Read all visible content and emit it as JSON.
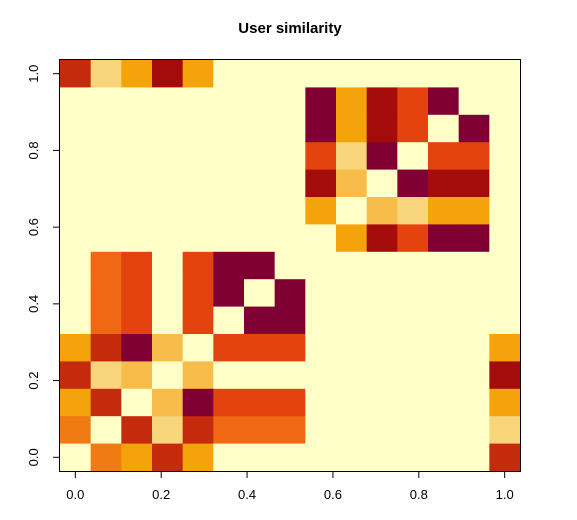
{
  "chart_data": {
    "type": "heatmap",
    "title": "User similarity",
    "xlabel": "",
    "ylabel": "",
    "xlim": [
      -0.0357,
      1.0357
    ],
    "ylim": [
      -0.0357,
      1.0357
    ],
    "x_ticks": [
      0.0,
      0.2,
      0.4,
      0.6,
      0.8,
      1.0
    ],
    "y_ticks": [
      0.0,
      0.2,
      0.4,
      0.6,
      0.8,
      1.0
    ],
    "x_tick_labels": [
      "0.0",
      "0.2",
      "0.4",
      "0.6",
      "0.8",
      "1.0"
    ],
    "y_tick_labels": [
      "0.0",
      "0.2",
      "0.4",
      "0.6",
      "0.8",
      "1.0"
    ],
    "grid": false,
    "n_rows": 15,
    "n_cols": 15,
    "cell_centers": [
      0.0,
      0.0714,
      0.1429,
      0.2143,
      0.2857,
      0.3571,
      0.4286,
      0.5,
      0.5714,
      0.6429,
      0.7143,
      0.7857,
      0.8571,
      0.9286,
      1.0
    ],
    "palette": {
      "0": "#FFFFC8",
      "1": "#F8D47A",
      "2": "#F5A30A",
      "3": "#F07B12",
      "4": "#E4420E",
      "5": "#C42A0C",
      "6": "#A40B0B",
      "7": "#800033",
      "8": "#F8BC4A",
      "9": "#F06714"
    },
    "row_order": "top-to-bottom (first row at y=1.0)",
    "levels": [
      [
        5,
        1,
        2,
        6,
        2,
        0,
        0,
        0,
        0,
        0,
        0,
        0,
        0,
        0,
        0
      ],
      [
        0,
        0,
        0,
        0,
        0,
        0,
        0,
        0,
        7,
        2,
        6,
        4,
        7,
        0,
        0
      ],
      [
        0,
        0,
        0,
        0,
        0,
        0,
        0,
        0,
        7,
        2,
        6,
        4,
        0,
        7,
        0
      ],
      [
        0,
        0,
        0,
        0,
        0,
        0,
        0,
        0,
        4,
        1,
        7,
        0,
        4,
        4,
        0
      ],
      [
        0,
        0,
        0,
        0,
        0,
        0,
        0,
        0,
        6,
        8,
        0,
        7,
        6,
        6,
        0
      ],
      [
        0,
        0,
        0,
        0,
        0,
        0,
        0,
        0,
        2,
        0,
        8,
        1,
        2,
        2,
        0
      ],
      [
        0,
        0,
        0,
        0,
        0,
        0,
        0,
        0,
        0,
        2,
        6,
        4,
        7,
        7,
        0
      ],
      [
        0,
        9,
        4,
        0,
        4,
        7,
        7,
        0,
        0,
        0,
        0,
        0,
        0,
        0,
        0
      ],
      [
        0,
        9,
        4,
        0,
        4,
        7,
        0,
        7,
        0,
        0,
        0,
        0,
        0,
        0,
        0
      ],
      [
        0,
        9,
        4,
        0,
        4,
        0,
        7,
        7,
        0,
        0,
        0,
        0,
        0,
        0,
        0
      ],
      [
        2,
        5,
        7,
        8,
        0,
        4,
        4,
        4,
        0,
        0,
        0,
        0,
        0,
        0,
        2
      ],
      [
        5,
        1,
        8,
        0,
        8,
        0,
        0,
        0,
        0,
        0,
        0,
        0,
        0,
        0,
        6
      ],
      [
        2,
        5,
        0,
        8,
        7,
        4,
        4,
        4,
        0,
        0,
        0,
        0,
        0,
        0,
        2
      ],
      [
        3,
        0,
        5,
        1,
        5,
        9,
        9,
        9,
        0,
        0,
        0,
        0,
        0,
        0,
        1
      ],
      [
        0,
        3,
        2,
        5,
        2,
        0,
        0,
        0,
        0,
        0,
        0,
        0,
        0,
        0,
        5
      ]
    ]
  }
}
